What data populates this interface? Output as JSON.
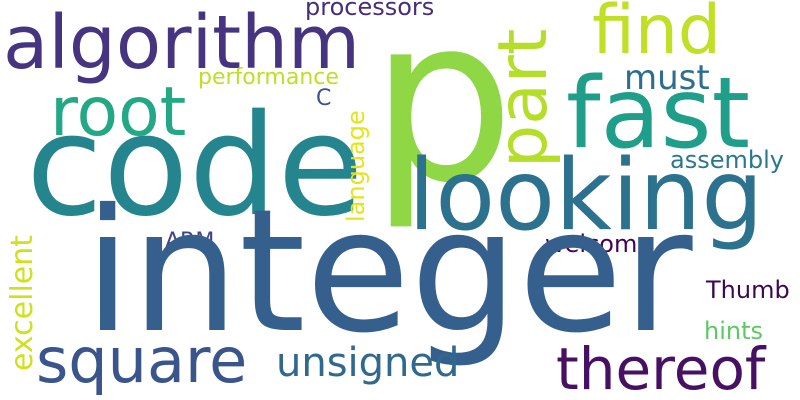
{
  "words": {
    "integer": {
      "text": "integer",
      "color": "#35608d"
    },
    "p": {
      "text": "p",
      "color": "#8fd744"
    },
    "code": {
      "text": "code",
      "color": "#25858e"
    },
    "looking": {
      "text": "looking",
      "color": "#2c728e"
    },
    "fast": {
      "text": "fast",
      "color": "#1f9e89"
    },
    "algorithm": {
      "text": "algorithm",
      "color": "#463480"
    },
    "square": {
      "text": "square",
      "color": "#3a548c"
    },
    "find": {
      "text": "find",
      "color": "#c0df25"
    },
    "root": {
      "text": "root",
      "color": "#22a884"
    },
    "thereof": {
      "text": "thereof",
      "color": "#471063"
    },
    "part": {
      "text": "part",
      "color": "#b5de2b"
    },
    "unsigned": {
      "text": "unsigned",
      "color": "#31688e"
    },
    "excellent": {
      "text": "excellent",
      "color": "#d0e11c"
    },
    "must": {
      "text": "must",
      "color": "#2e6d8e"
    },
    "processors": {
      "text": "processors",
      "color": "#472d7b"
    },
    "performance": {
      "text": "performance",
      "color": "#bddf26"
    },
    "assembly": {
      "text": "assembly",
      "color": "#2a788e"
    },
    "language": {
      "text": "language",
      "color": "#e5e419"
    },
    "welcome": {
      "text": "welcome",
      "color": "#440154"
    },
    "ARM": {
      "text": "ARM",
      "color": "#414487"
    },
    "Thumb": {
      "text": "Thumb",
      "color": "#3e0751"
    },
    "hints": {
      "text": "hints",
      "color": "#5ec962"
    },
    "C": {
      "text": "C",
      "color": "#3b528b"
    }
  }
}
